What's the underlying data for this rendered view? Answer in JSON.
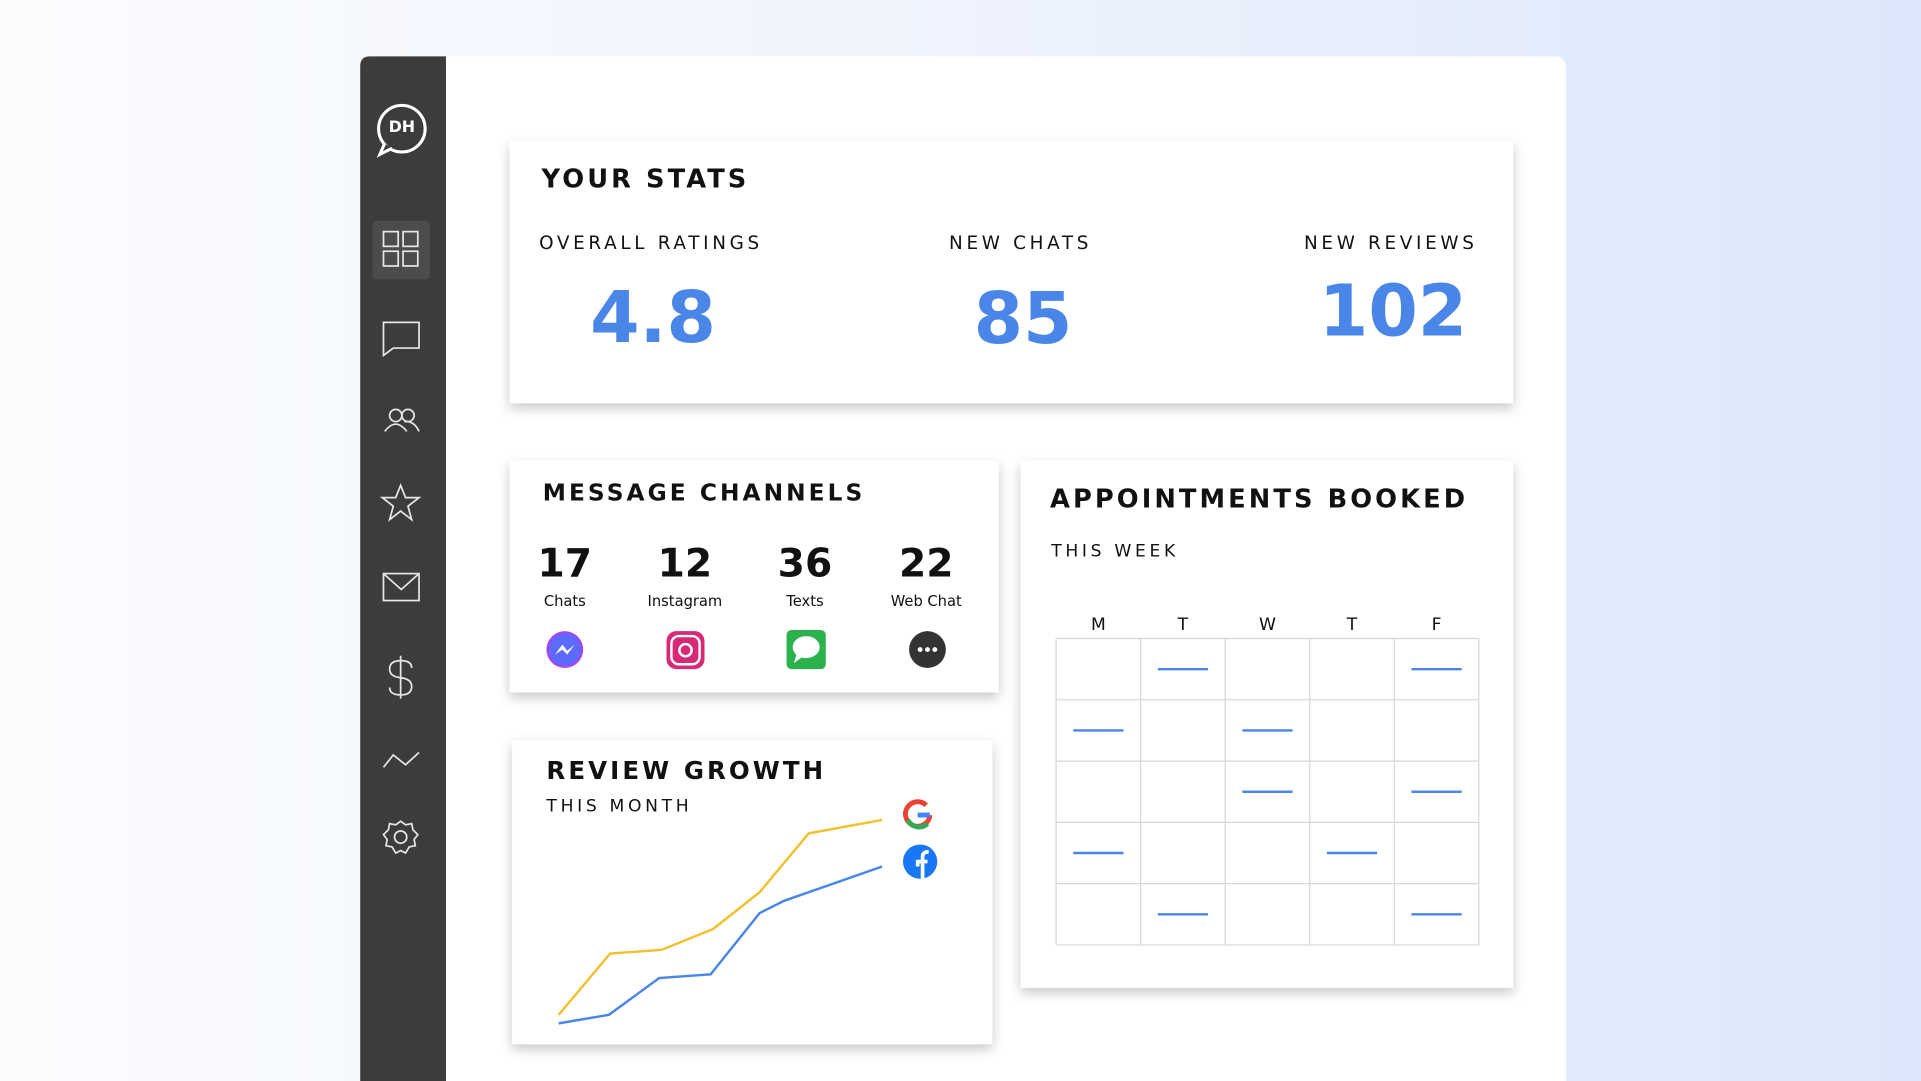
{
  "sidebar": {
    "logo": "DH"
  },
  "stats": {
    "title": "YOUR STATS",
    "items": [
      {
        "label": "OVERALL RATINGS",
        "value": 4.8
      },
      {
        "label": "NEW CHATS",
        "value": 85
      },
      {
        "label": "NEW REVIEWS",
        "value": 102
      }
    ]
  },
  "channels": {
    "title": "MESSAGE CHANNELS",
    "items": [
      {
        "count": 17,
        "label": "Chats"
      },
      {
        "count": 12,
        "label": "Instagram"
      },
      {
        "count": 36,
        "label": "Texts"
      },
      {
        "count": 22,
        "label": "Web Chat"
      }
    ]
  },
  "review_growth": {
    "title": "REVIEW GROWTH",
    "subtitle": "THIS MONTH"
  },
  "appointments": {
    "title": "APPOINTMENTS BOOKED",
    "subtitle": "THIS WEEK",
    "days": [
      "M",
      "T",
      "W",
      "T",
      "F"
    ]
  }
}
